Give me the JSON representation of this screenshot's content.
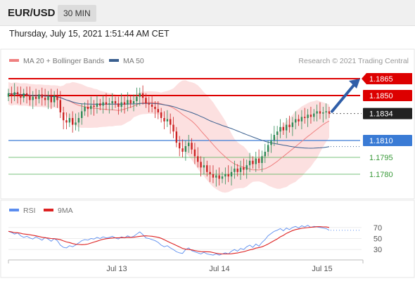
{
  "header": {
    "symbol": "EUR/USD",
    "timeframe": "30 MIN",
    "datetime": "Thursday, July 15, 2021 1:51:44 AM CET"
  },
  "legend": {
    "ma20_label": "MA 20 + Bollinger Bands",
    "ma50_label": "MA 50",
    "rsi_label": "RSI",
    "ma9_label": "9MA"
  },
  "credit": "Research © 2021 Trading Central",
  "colors": {
    "up": "#2e8b57",
    "down": "#cc2222",
    "resistance": "#dd0000",
    "pivot": "#3a7bd5",
    "support": "#4caf50",
    "ma20": "#ef8080",
    "ma50": "#3a5f8f",
    "bands": "#fbdada",
    "rsi": "#5b8def",
    "rsi_ma": "#dd2222",
    "current": "#222222",
    "arrow": "#2f5ea8"
  },
  "chart_data": [
    {
      "type": "candlestick",
      "title": "EUR/USD",
      "timeframe": "30 MIN",
      "x_ticks": [
        "Jul 13",
        "Jul 14",
        "Jul 15"
      ],
      "ylim": [
        1.176,
        1.1885
      ],
      "closes": [
        1.1852,
        1.185,
        1.1853,
        1.1851,
        1.1848,
        1.1852,
        1.185,
        1.1846,
        1.1849,
        1.1847,
        1.1851,
        1.1848,
        1.1846,
        1.1849,
        1.1844,
        1.185,
        1.1846,
        1.1835,
        1.1828,
        1.1826,
        1.183,
        1.1824,
        1.1826,
        1.183,
        1.1836,
        1.184,
        1.1838,
        1.1841,
        1.184,
        1.1843,
        1.1841,
        1.1844,
        1.1842,
        1.1843,
        1.1845,
        1.1843,
        1.184,
        1.1844,
        1.1842,
        1.1846,
        1.1843,
        1.1845,
        1.1849,
        1.1852,
        1.1848,
        1.1843,
        1.1842,
        1.184,
        1.1838,
        1.1835,
        1.183,
        1.1827,
        1.1829,
        1.1824,
        1.1818,
        1.1808,
        1.1803,
        1.18,
        1.1805,
        1.1808,
        1.1802,
        1.1796,
        1.1791,
        1.1786,
        1.1788,
        1.1782,
        1.178,
        1.1777,
        1.1779,
        1.1776,
        1.1778,
        1.178,
        1.1778,
        1.1782,
        1.1785,
        1.1782,
        1.1786,
        1.1784,
        1.1788,
        1.1792,
        1.1789,
        1.1794,
        1.179,
        1.1796,
        1.18,
        1.1806,
        1.181,
        1.1815,
        1.1818,
        1.1822,
        1.1819,
        1.1824,
        1.1822,
        1.1826,
        1.1829,
        1.1827,
        1.1831,
        1.183,
        1.1833,
        1.1831,
        1.1834,
        1.1836,
        1.1834,
        1.1835,
        1.1836,
        1.1834
      ],
      "levels": [
        {
          "value": 1.1865,
          "label": "1.1865",
          "role": "resistance"
        },
        {
          "value": 1.185,
          "label": "1.1850",
          "role": "resistance"
        },
        {
          "value": 1.1834,
          "label": "1.1834",
          "role": "current"
        },
        {
          "value": 1.181,
          "label": "1.1810",
          "role": "pivot"
        },
        {
          "value": 1.1795,
          "label": "1.1795",
          "role": "support"
        },
        {
          "value": 1.178,
          "label": "1.1780",
          "role": "support"
        }
      ],
      "forecast_target": 1.1865,
      "series": [
        {
          "name": "MA 20 + Bollinger Bands"
        },
        {
          "name": "MA 50"
        }
      ]
    },
    {
      "type": "line",
      "series": [
        {
          "name": "RSI"
        },
        {
          "name": "9MA"
        }
      ],
      "y_ticks": [
        70,
        50,
        30
      ],
      "ylim": [
        15,
        85
      ],
      "rsi_values": [
        63,
        61,
        58,
        60,
        55,
        52,
        54,
        51,
        49,
        53,
        50,
        47,
        52,
        49,
        45,
        50,
        46,
        38,
        34,
        33,
        37,
        35,
        38,
        42,
        46,
        48,
        47,
        50,
        49,
        52,
        50,
        53,
        51,
        52,
        54,
        51,
        49,
        53,
        51,
        55,
        52,
        54,
        58,
        62,
        57,
        51,
        50,
        48,
        46,
        43,
        38,
        35,
        37,
        33,
        30,
        26,
        24,
        23,
        30,
        33,
        28,
        26,
        24,
        22,
        25,
        22,
        21,
        20,
        22,
        20,
        22,
        24,
        22,
        27,
        30,
        27,
        32,
        30,
        35,
        38,
        34,
        40,
        36,
        43,
        48,
        55,
        59,
        63,
        65,
        68,
        64,
        69,
        66,
        70,
        72,
        69,
        73,
        71,
        74,
        70,
        72,
        71,
        70,
        69,
        68,
        65
      ]
    }
  ]
}
